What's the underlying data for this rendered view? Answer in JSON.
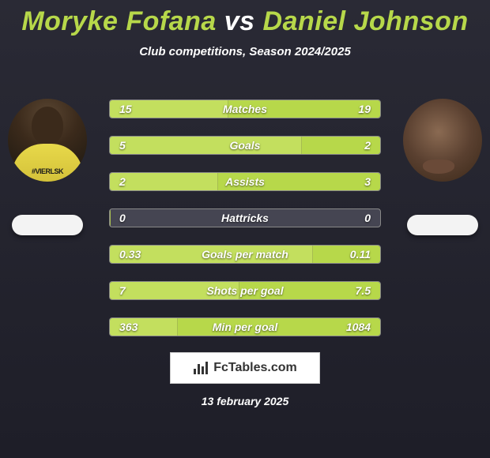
{
  "title": {
    "player1": "Moryke Fofana",
    "vs": "vs",
    "player2": "Daniel Johnson"
  },
  "subtitle": "Club competitions, Season 2024/2025",
  "player1_jersey_text": "#VIERLSK",
  "colors": {
    "accent": "#b7d84a",
    "bar_left": "#c3df5e",
    "bar_right": "#b7d84a",
    "bar_track": "#454552",
    "bar_border": "#888888",
    "text": "#ffffff"
  },
  "stats": [
    {
      "name": "Matches",
      "left_val": "15",
      "right_val": "19",
      "left_pct": 44,
      "right_pct": 56
    },
    {
      "name": "Goals",
      "left_val": "5",
      "right_val": "2",
      "left_pct": 71,
      "right_pct": 29
    },
    {
      "name": "Assists",
      "left_val": "2",
      "right_val": "3",
      "left_pct": 40,
      "right_pct": 60
    },
    {
      "name": "Hattricks",
      "left_val": "0",
      "right_val": "0",
      "left_pct": 0,
      "right_pct": 0
    },
    {
      "name": "Goals per match",
      "left_val": "0.33",
      "right_val": "0.11",
      "left_pct": 75,
      "right_pct": 25
    },
    {
      "name": "Shots per goal",
      "left_val": "7",
      "right_val": "7.5",
      "left_pct": 48,
      "right_pct": 52
    },
    {
      "name": "Min per goal",
      "left_val": "363",
      "right_val": "1084",
      "left_pct": 25,
      "right_pct": 75
    }
  ],
  "footer": {
    "brand": "FcTables.com",
    "date": "13 february 2025"
  }
}
